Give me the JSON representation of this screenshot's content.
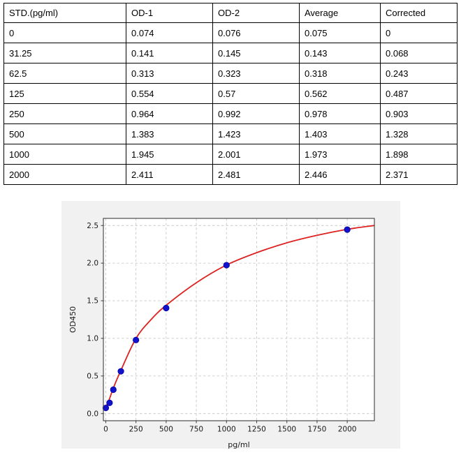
{
  "table": {
    "columns": [
      "STD.(pg/ml)",
      "OD-1",
      "OD-2",
      "Average",
      "Corrected"
    ],
    "rows": [
      [
        "0",
        "0.074",
        "0.076",
        "0.075",
        "0"
      ],
      [
        "31.25",
        "0.141",
        "0.145",
        "0.143",
        "0.068"
      ],
      [
        "62.5",
        "0.313",
        "0.323",
        "0.318",
        "0.243"
      ],
      [
        "125",
        "0.554",
        "0.57",
        "0.562",
        "0.487"
      ],
      [
        "250",
        "0.964",
        "0.992",
        "0.978",
        "0.903"
      ],
      [
        "500",
        "1.383",
        "1.423",
        "1.403",
        "1.328"
      ],
      [
        "1000",
        "1.945",
        "2.001",
        "1.973",
        "1.898"
      ],
      [
        "2000",
        "2.411",
        "2.481",
        "2.446",
        "2.371"
      ]
    ]
  },
  "chart_data": {
    "type": "scatter",
    "title": "",
    "xlabel": "pg/ml",
    "ylabel": "OD450",
    "xlim": [
      -20,
      2225
    ],
    "ylim": [
      -0.095,
      2.595
    ],
    "x_ticks": [
      0,
      250,
      500,
      750,
      1000,
      1250,
      1500,
      1750,
      2000
    ],
    "y_ticks": [
      0.0,
      0.5,
      1.0,
      1.5,
      2.0,
      2.5
    ],
    "y_tick_labels": [
      "0.0",
      "0.5",
      "1.0",
      "1.5",
      "2.0",
      "2.5"
    ],
    "grid": "dashed",
    "legend_position": "none",
    "series": [
      {
        "name": "standard-points",
        "type": "scatter",
        "x": [
          0,
          31.25,
          62.5,
          125,
          250,
          500,
          1000,
          2000
        ],
        "y": [
          0.075,
          0.143,
          0.318,
          0.562,
          0.978,
          1.403,
          1.973,
          2.446
        ],
        "marker_color": "#1212cc",
        "marker_edge": "#0000a0"
      },
      {
        "name": "fit-curve",
        "type": "line",
        "x": [
          0,
          31.25,
          62.5,
          125,
          250,
          375,
          500,
          750,
          1000,
          1250,
          1500,
          1750,
          2000,
          2225
        ],
        "y": [
          0.085,
          0.2,
          0.34,
          0.575,
          1.0,
          1.25,
          1.44,
          1.74,
          1.975,
          2.14,
          2.27,
          2.37,
          2.45,
          2.5
        ],
        "color": "#dd2222"
      }
    ],
    "colors": {
      "figure_bg": "#f1f1f1",
      "plot_bg": "#ffffff",
      "grid": "#c9c9c9",
      "spine": "#3d3d3d",
      "tick_text": "#1a1a1a"
    }
  }
}
